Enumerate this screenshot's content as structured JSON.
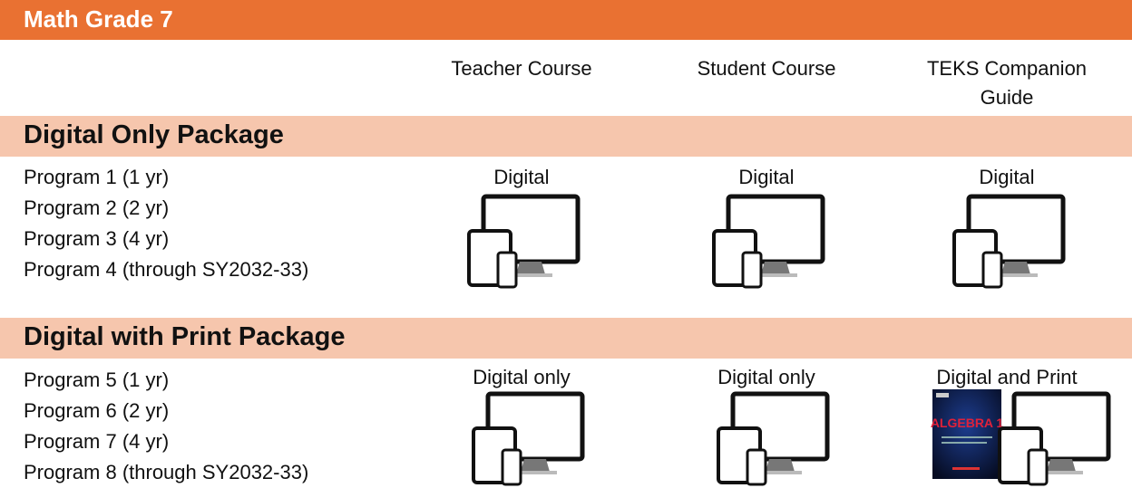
{
  "header": {
    "title": "Math Grade 7"
  },
  "columns": [
    "Teacher Course",
    "Student Course",
    "TEKS Companion Guide"
  ],
  "sections": [
    {
      "title": "Digital Only Package",
      "programs": [
        "Program 1 (1 yr)",
        "Program 2 (2 yr)",
        "Program 3 (4 yr)",
        "Program 4 (through SY2032-33)"
      ],
      "cells": [
        "Digital",
        "Digital",
        "Digital"
      ]
    },
    {
      "title": "Digital with Print Package",
      "programs": [
        "Program 5 (1 yr)",
        "Program 6 (2 yr)",
        "Program 7 (4 yr)",
        "Program 8 (through SY2032-33)"
      ],
      "cells": [
        "Digital only",
        "Digital only",
        "Digital and Print"
      ]
    }
  ],
  "book_cover": {
    "title": "ALGEBRA 1"
  }
}
